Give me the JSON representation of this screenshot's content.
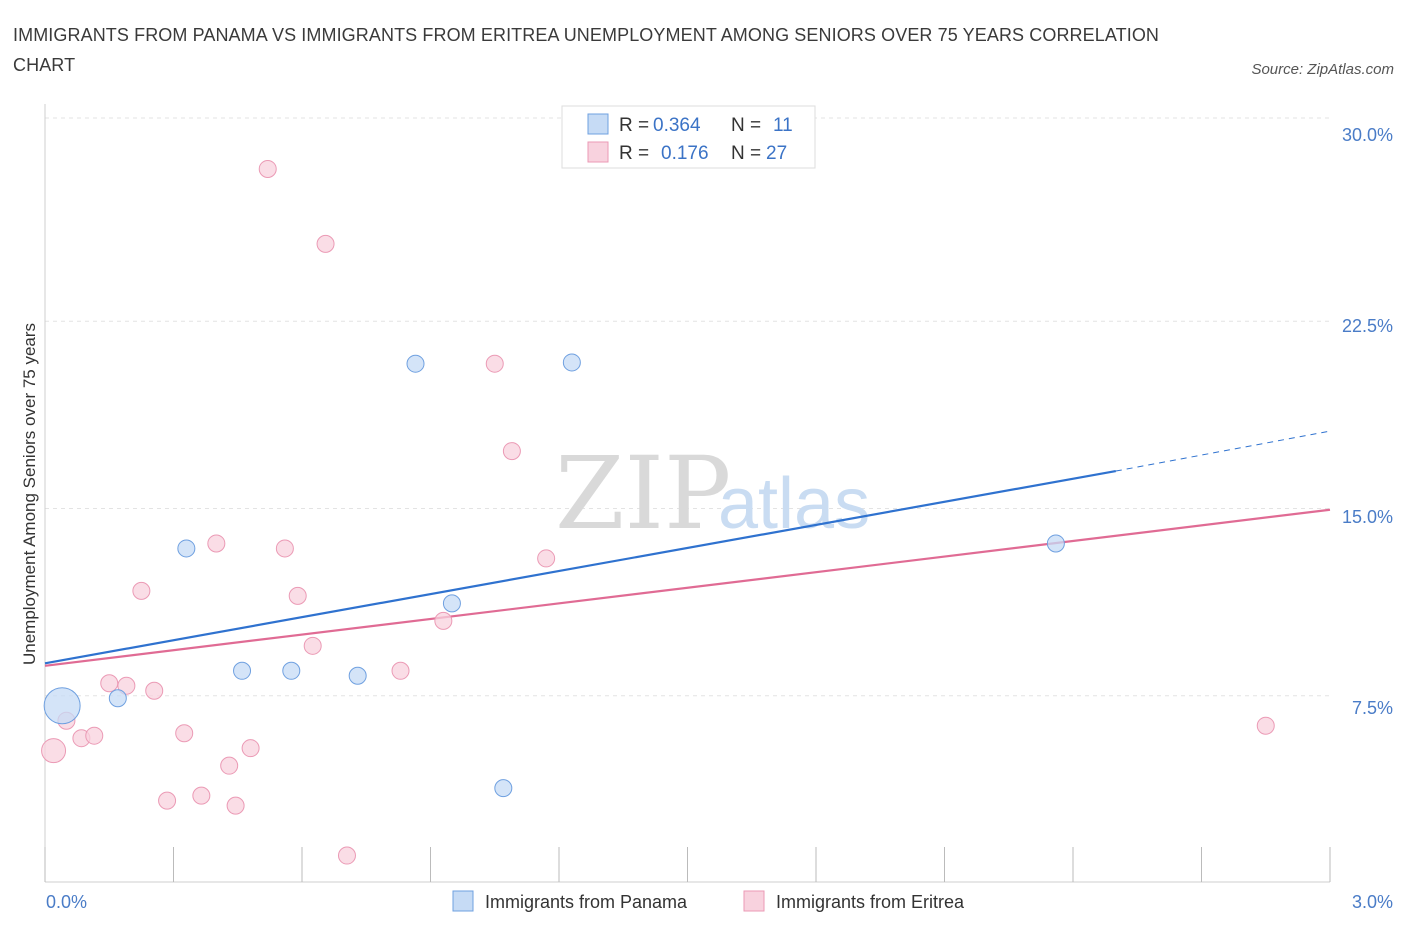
{
  "title": "IMMIGRANTS FROM PANAMA VS IMMIGRANTS FROM ERITREA UNEMPLOYMENT AMONG SENIORS OVER 75 YEARS CORRELATION CHART",
  "source": "Source: ZipAtlas.com",
  "watermark": {
    "zip": "ZIP",
    "atlas": "atlas"
  },
  "legend": {
    "r_label": "R =",
    "n_label": "N =",
    "rows": [
      {
        "r": "0.364",
        "n": "11"
      },
      {
        "r": "0.176",
        "n": "27"
      }
    ]
  },
  "chart_data": {
    "type": "scatter",
    "title": "IMMIGRANTS FROM PANAMA VS IMMIGRANTS FROM ERITREA UNEMPLOYMENT AMONG SENIORS OVER 75 YEARS CORRELATION CHART",
    "xlabel": "",
    "ylabel": "Unemployment Among Seniors over 75 years",
    "xlim": [
      0,
      3.0
    ],
    "ylim": [
      0,
      30
    ],
    "x_tick_labels": [
      "0.0%",
      "3.0%"
    ],
    "y_ticks": [
      7.5,
      15.0,
      22.5,
      30.0
    ],
    "y_tick_labels": [
      "7.5%",
      "15.0%",
      "22.5%",
      "30.0%"
    ],
    "grid": true,
    "legend_position": "bottom-center",
    "series": [
      {
        "name": "Immigrants from Panama",
        "color": "#6fa0e0",
        "fill": "#c6dbf5",
        "line_color": "#2f72cf",
        "r": 0.364,
        "n": 11,
        "points": [
          {
            "x": 0.04,
            "y": 7.1,
            "size": "large"
          },
          {
            "x": 0.17,
            "y": 7.4
          },
          {
            "x": 0.33,
            "y": 13.4
          },
          {
            "x": 0.46,
            "y": 8.5
          },
          {
            "x": 0.575,
            "y": 8.5
          },
          {
            "x": 0.73,
            "y": 8.3
          },
          {
            "x": 0.865,
            "y": 20.8
          },
          {
            "x": 0.95,
            "y": 11.2
          },
          {
            "x": 1.07,
            "y": 3.8
          },
          {
            "x": 1.23,
            "y": 20.85
          },
          {
            "x": 2.36,
            "y": 13.6
          }
        ],
        "trend": {
          "x0": 0.0,
          "y0": 8.8,
          "x1": 2.5,
          "y1": 16.5,
          "dashed_to_x": 3.0,
          "dashed_to_y": 18.1
        }
      },
      {
        "name": "Immigrants from Eritrea",
        "color": "#eb9ab5",
        "fill": "#f8d2de",
        "line_color": "#e06b94",
        "r": 0.176,
        "n": 27,
        "points": [
          {
            "x": 0.02,
            "y": 5.3,
            "size": "medium"
          },
          {
            "x": 0.05,
            "y": 6.5
          },
          {
            "x": 0.085,
            "y": 5.8
          },
          {
            "x": 0.115,
            "y": 5.9
          },
          {
            "x": 0.15,
            "y": 8.0
          },
          {
            "x": 0.19,
            "y": 7.9
          },
          {
            "x": 0.225,
            "y": 11.7
          },
          {
            "x": 0.255,
            "y": 7.7
          },
          {
            "x": 0.285,
            "y": 3.3
          },
          {
            "x": 0.325,
            "y": 6.0
          },
          {
            "x": 0.365,
            "y": 3.5
          },
          {
            "x": 0.4,
            "y": 13.6
          },
          {
            "x": 0.43,
            "y": 4.7
          },
          {
            "x": 0.445,
            "y": 3.1
          },
          {
            "x": 0.48,
            "y": 5.4
          },
          {
            "x": 0.52,
            "y": 28.6
          },
          {
            "x": 0.56,
            "y": 13.4
          },
          {
            "x": 0.59,
            "y": 11.5
          },
          {
            "x": 0.625,
            "y": 9.5
          },
          {
            "x": 0.655,
            "y": 25.6
          },
          {
            "x": 0.705,
            "y": 1.1
          },
          {
            "x": 0.83,
            "y": 8.5
          },
          {
            "x": 0.93,
            "y": 10.5
          },
          {
            "x": 1.05,
            "y": 20.8
          },
          {
            "x": 1.09,
            "y": 17.3
          },
          {
            "x": 1.17,
            "y": 13.0
          },
          {
            "x": 2.85,
            "y": 6.3
          }
        ],
        "trend": {
          "x0": 0.0,
          "y0": 8.7,
          "x1": 3.0,
          "y1": 14.95
        }
      }
    ]
  }
}
